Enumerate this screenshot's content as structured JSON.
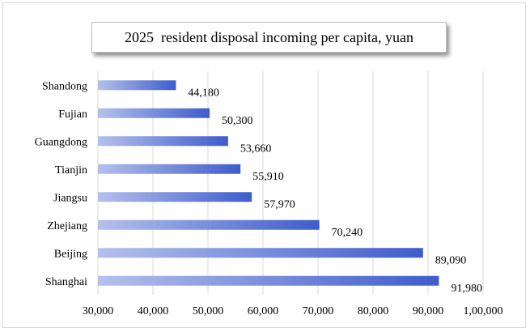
{
  "chart_data": {
    "type": "bar",
    "orientation": "horizontal",
    "title": "2025  resident disposal incoming per capita, yuan",
    "categories": [
      "Shanghai",
      "Beijing",
      "Zhejiang",
      "Jiangsu",
      "Tianjin",
      "Guangdong",
      "Fujian",
      "Shandong"
    ],
    "values": [
      91980,
      89090,
      70240,
      57970,
      55910,
      53660,
      50300,
      44180
    ],
    "data_labels": [
      "91,980",
      "89,090",
      "70,240",
      "57,970",
      "55,910",
      "53,660",
      "50,300",
      "44,180"
    ],
    "xlim": [
      30000,
      100000
    ],
    "x_ticks": [
      30000,
      40000,
      50000,
      60000,
      70000,
      80000,
      90000,
      100000
    ],
    "x_tick_labels": [
      "30,000",
      "40,000",
      "50,000",
      "60,000",
      "70,000",
      "80,000",
      "90,000",
      "1,00,000"
    ],
    "grid": "vertical",
    "legend": "none",
    "xlabel": "",
    "ylabel": ""
  },
  "colors": {
    "bar_start": "#b4c0ec",
    "bar_end": "#3f5ccc",
    "grid": "#d9d9d9"
  }
}
